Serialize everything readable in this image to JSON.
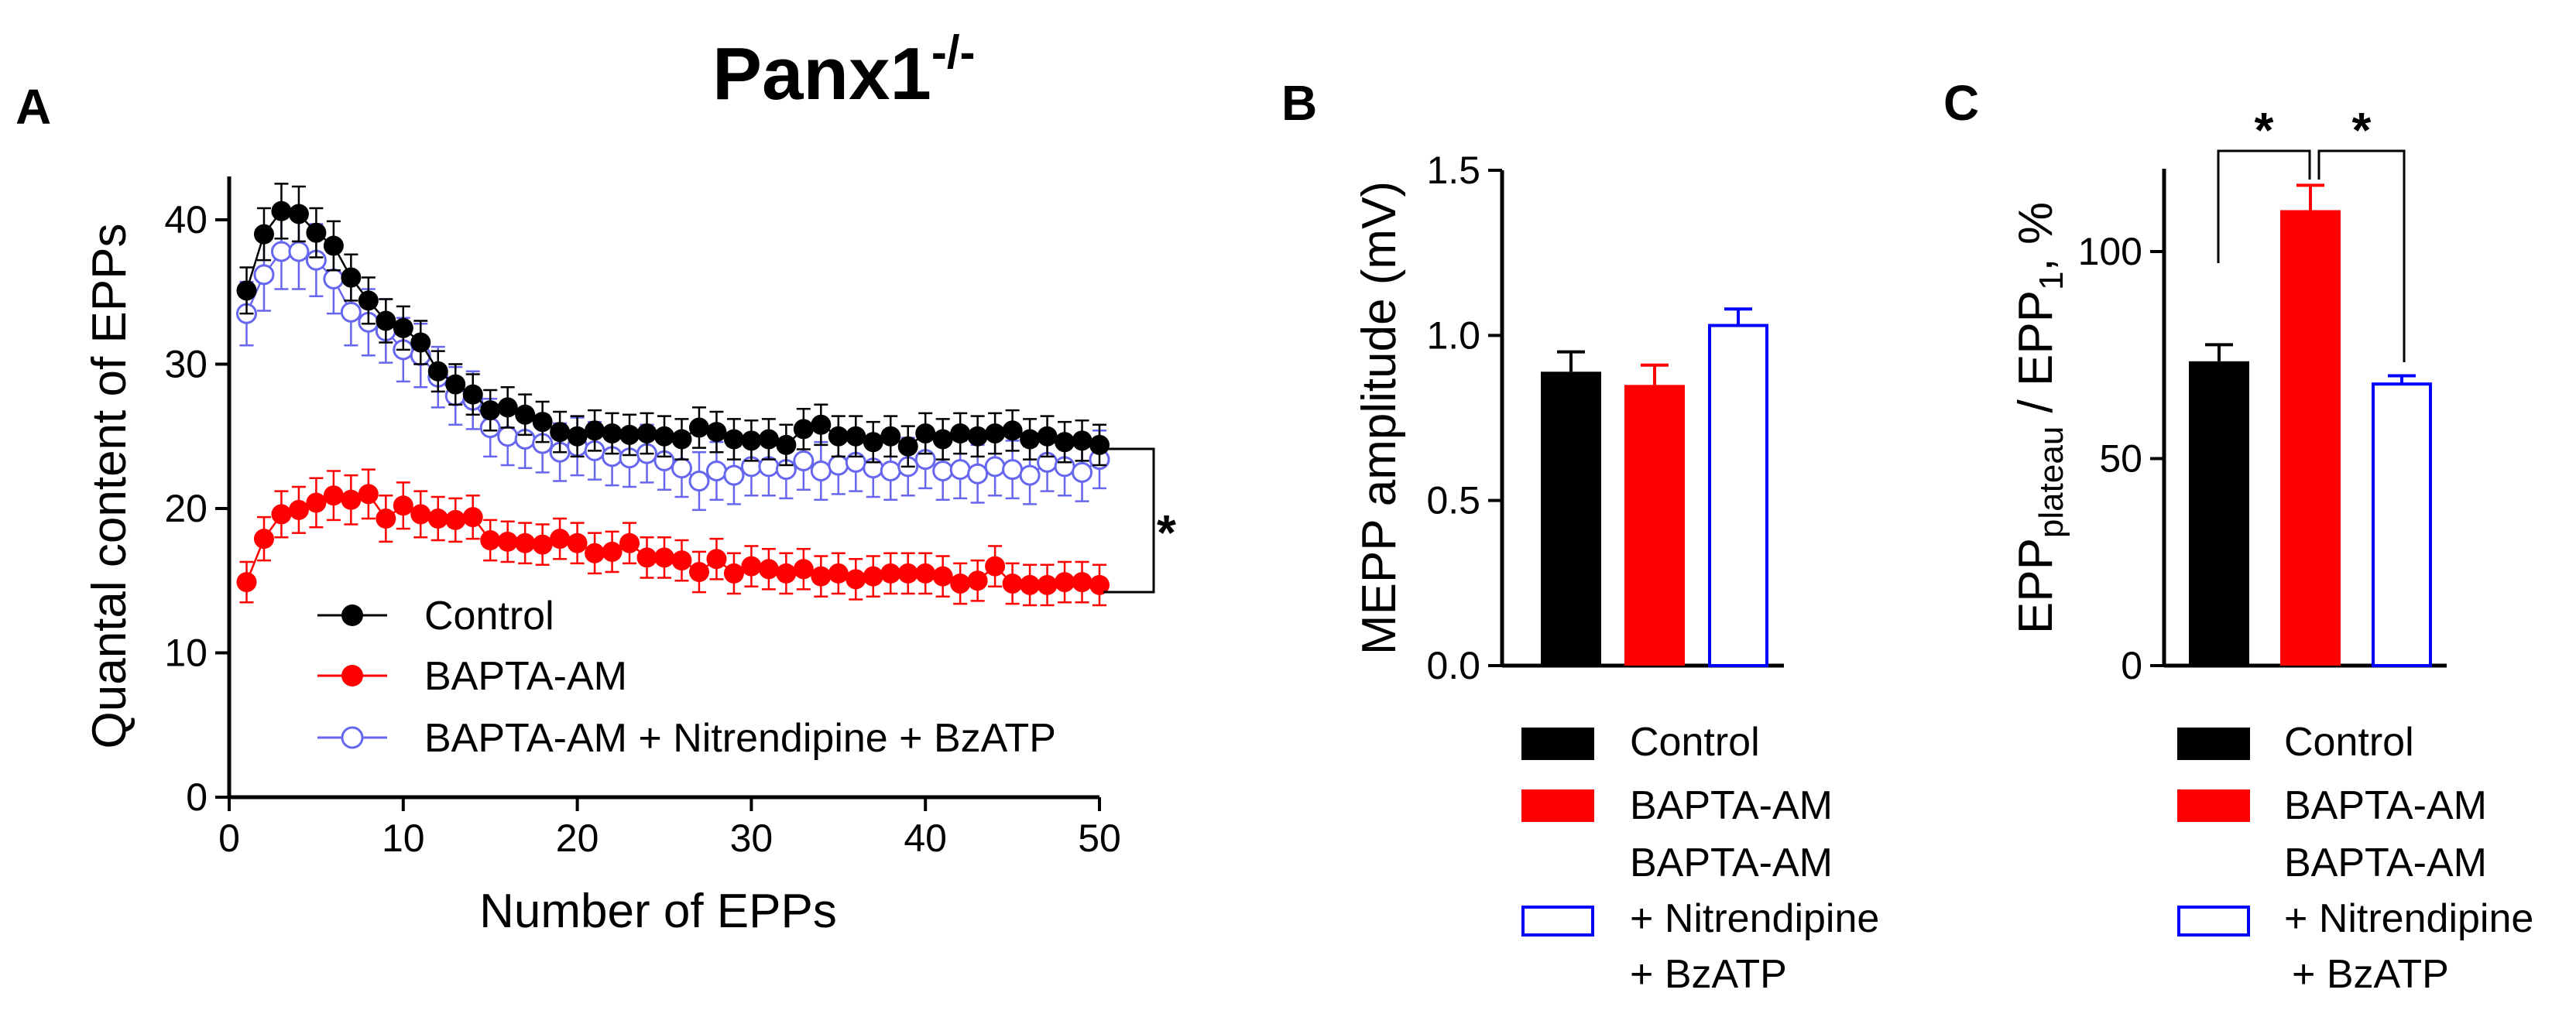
{
  "chart_data": [
    {
      "panel": "A",
      "type": "line",
      "title": "Panx1",
      "title_superscript": "-/-",
      "xlabel": "Number of EPPs",
      "ylabel": "Quantal content of EPPs",
      "xlim": [
        0,
        50
      ],
      "ylim": [
        0,
        43
      ],
      "xticks": [
        0,
        10,
        20,
        30,
        40,
        50
      ],
      "yticks": [
        0,
        10,
        20,
        30,
        40
      ],
      "annotation": "*",
      "legend": [
        "Control",
        "BAPTA-AM",
        "BAPTA-AM + Nitrendipine + BzATP"
      ],
      "x": [
        1,
        2,
        3,
        4,
        5,
        6,
        7,
        8,
        9,
        10,
        11,
        12,
        13,
        14,
        15,
        16,
        17,
        18,
        19,
        20,
        21,
        22,
        23,
        24,
        25,
        26,
        27,
        28,
        29,
        30,
        31,
        32,
        33,
        34,
        35,
        36,
        37,
        38,
        39,
        40,
        41,
        42,
        43,
        44,
        45,
        46,
        47,
        48,
        49,
        50
      ],
      "series": [
        {
          "name": "Control",
          "color": "#000000",
          "marker": "filled",
          "values": [
            35.1,
            39.0,
            40.6,
            40.4,
            39.1,
            38.2,
            36.0,
            34.4,
            33.0,
            32.5,
            31.5,
            29.5,
            28.6,
            27.9,
            26.8,
            27.0,
            26.5,
            26.0,
            25.3,
            25.0,
            25.4,
            25.2,
            25.1,
            25.2,
            25.0,
            24.8,
            25.6,
            25.3,
            24.8,
            24.7,
            24.8,
            24.4,
            25.5,
            25.8,
            25.0,
            25.0,
            24.6,
            25.0,
            24.3,
            25.2,
            24.8,
            25.2,
            25.0,
            25.2,
            25.4,
            24.8,
            25.0,
            24.6,
            24.7,
            24.4
          ],
          "errors": [
            1.6,
            1.8,
            1.9,
            1.9,
            1.7,
            1.7,
            1.6,
            1.6,
            1.5,
            1.5,
            1.5,
            1.4,
            1.4,
            1.4,
            1.4,
            1.4,
            1.4,
            1.4,
            1.4,
            1.4,
            1.4,
            1.4,
            1.4,
            1.4,
            1.4,
            1.4,
            1.4,
            1.4,
            1.4,
            1.4,
            1.4,
            1.4,
            1.4,
            1.4,
            1.4,
            1.4,
            1.4,
            1.4,
            1.4,
            1.4,
            1.4,
            1.4,
            1.4,
            1.4,
            1.4,
            1.4,
            1.4,
            1.4,
            1.4,
            1.4
          ]
        },
        {
          "name": "BAPTA-AM",
          "color": "#ff0000",
          "marker": "filled",
          "values": [
            14.9,
            17.9,
            19.6,
            19.9,
            20.4,
            20.9,
            20.6,
            21.0,
            19.3,
            20.2,
            19.6,
            19.3,
            19.2,
            19.4,
            17.8,
            17.7,
            17.6,
            17.5,
            17.9,
            17.6,
            16.9,
            17.0,
            17.6,
            16.6,
            16.6,
            16.4,
            15.6,
            16.5,
            15.5,
            16.0,
            15.8,
            15.5,
            15.8,
            15.3,
            15.5,
            15.1,
            15.3,
            15.5,
            15.5,
            15.5,
            15.3,
            14.8,
            15.0,
            16.0,
            14.8,
            14.7,
            14.7,
            14.9,
            14.9,
            14.7
          ],
          "errors": [
            1.4,
            1.5,
            1.6,
            1.6,
            1.7,
            1.7,
            1.7,
            1.7,
            1.6,
            1.6,
            1.6,
            1.5,
            1.5,
            1.5,
            1.4,
            1.4,
            1.4,
            1.4,
            1.4,
            1.4,
            1.4,
            1.4,
            1.4,
            1.4,
            1.4,
            1.4,
            1.4,
            1.4,
            1.4,
            1.4,
            1.4,
            1.4,
            1.4,
            1.4,
            1.4,
            1.4,
            1.4,
            1.4,
            1.4,
            1.4,
            1.4,
            1.4,
            1.4,
            1.4,
            1.4,
            1.4,
            1.4,
            1.4,
            1.4,
            1.4
          ]
        },
        {
          "name": "BAPTA-AM + Nitrendipine + BzATP",
          "color": "#6666ee",
          "marker": "open",
          "values": [
            33.5,
            36.2,
            37.8,
            37.8,
            37.2,
            35.9,
            33.6,
            32.9,
            32.3,
            31.0,
            30.6,
            29.1,
            27.8,
            27.5,
            25.6,
            25.0,
            24.8,
            24.5,
            23.9,
            24.3,
            24.0,
            23.6,
            23.5,
            23.8,
            23.3,
            22.8,
            21.9,
            22.6,
            22.3,
            22.9,
            22.9,
            22.7,
            23.3,
            22.6,
            23.0,
            23.2,
            22.8,
            22.6,
            22.9,
            23.4,
            22.6,
            22.7,
            22.4,
            22.9,
            22.7,
            22.3,
            23.2,
            22.9,
            22.5,
            23.4
          ],
          "errors": [
            2.2,
            2.5,
            2.6,
            2.6,
            2.5,
            2.4,
            2.3,
            2.3,
            2.2,
            2.2,
            2.2,
            2.1,
            2.0,
            2.0,
            2.0,
            2.0,
            2.0,
            2.0,
            2.0,
            2.0,
            2.0,
            2.0,
            2.0,
            2.0,
            2.0,
            2.0,
            2.0,
            2.0,
            2.0,
            2.0,
            2.0,
            2.0,
            2.0,
            2.0,
            2.0,
            2.0,
            2.0,
            2.0,
            2.0,
            2.0,
            2.0,
            2.0,
            2.0,
            2.0,
            2.0,
            2.0,
            2.0,
            2.0,
            2.0,
            2.0
          ]
        }
      ]
    },
    {
      "panel": "B",
      "type": "bar",
      "ylabel": "MEPP amplitude (mV)",
      "ylim": [
        0,
        1.5
      ],
      "yticks": [
        "0.0",
        "0.5",
        "1.0",
        "1.5"
      ],
      "categories": [
        "Control",
        "BAPTA-AM",
        "BAPTA-AM + Nitrendipine + BzATP"
      ],
      "values": [
        0.89,
        0.85,
        1.03
      ],
      "errors": [
        0.06,
        0.06,
        0.05
      ],
      "colors": [
        "#000000",
        "#ff0000",
        "#0000ff"
      ],
      "fills": [
        "solid",
        "solid",
        "open"
      ],
      "legend": [
        {
          "lines": [
            "Control"
          ]
        },
        {
          "lines": [
            "BAPTA-AM"
          ]
        },
        {
          "lines": [
            "BAPTA-AM",
            "+ Nitrendipine",
            "+ BzATP"
          ]
        }
      ]
    },
    {
      "panel": "C",
      "type": "bar",
      "ylabel_main": "EPP",
      "ylabel_sub1": "plateau",
      "ylabel_mid": " / EPP",
      "ylabel_sub2": "1",
      "ylabel_end": ", %",
      "ylim": [
        0,
        120
      ],
      "yticks": [
        "0",
        "50",
        "100"
      ],
      "categories": [
        "Control",
        "BAPTA-AM",
        "BAPTA-AM + Nitrendipine + BzATP"
      ],
      "values": [
        73.5,
        110,
        68
      ],
      "errors": [
        4.0,
        6.0,
        2.0
      ],
      "colors": [
        "#000000",
        "#ff0000",
        "#0000ff"
      ],
      "fills": [
        "solid",
        "solid",
        "open"
      ],
      "significance": [
        "*",
        "*"
      ],
      "legend": [
        {
          "lines": [
            "Control"
          ]
        },
        {
          "lines": [
            "BAPTA-AM"
          ]
        },
        {
          "lines": [
            "BAPTA-AM",
            "+ Nitrendipine",
            "+ BzATP"
          ]
        }
      ]
    }
  ],
  "panel_labels": [
    "A",
    "B",
    "C"
  ]
}
